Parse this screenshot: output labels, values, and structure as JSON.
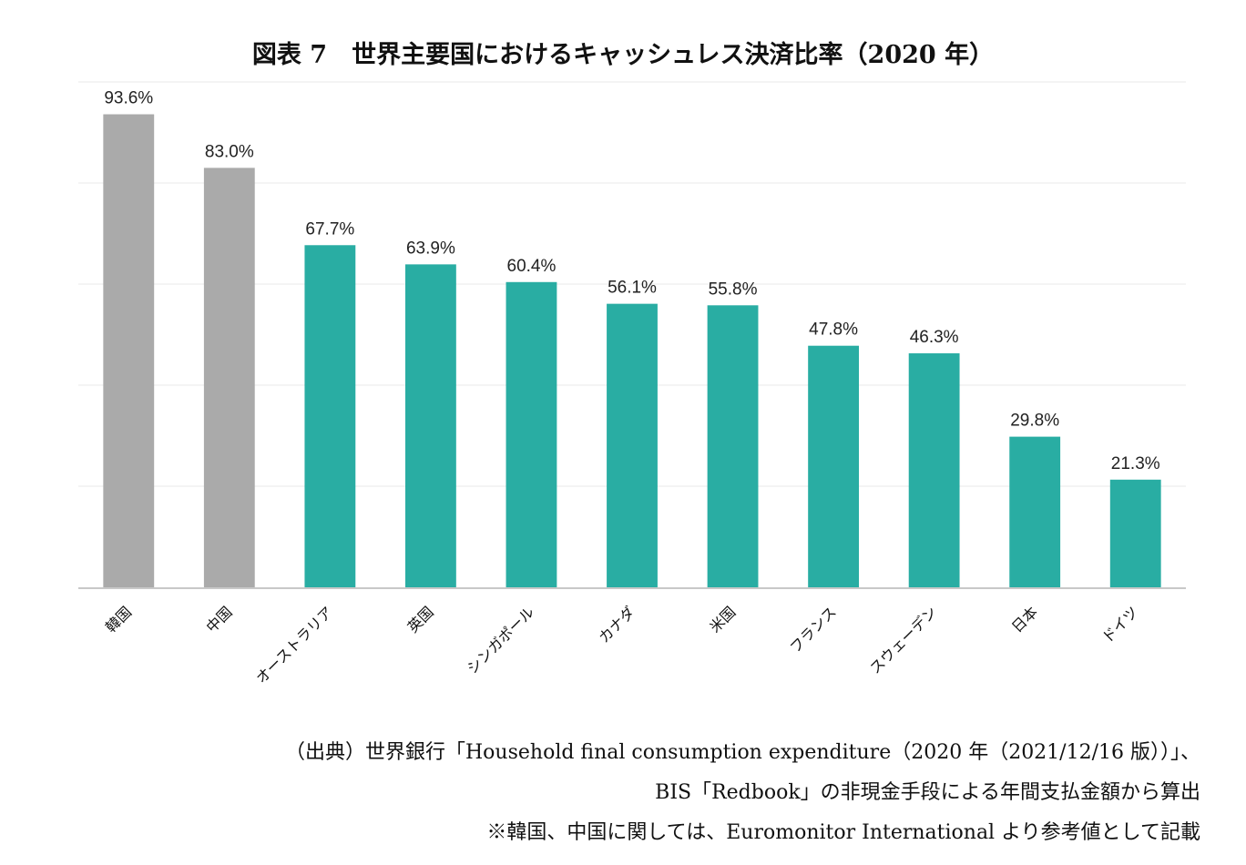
{
  "chart_data": {
    "type": "bar",
    "title": "図表 7　世界主要国におけるキャッシュレス決済比率（2020 年）",
    "xlabel": "",
    "ylabel": "",
    "ylim": [
      0,
      100
    ],
    "grid": true,
    "yticks_visible": false,
    "categories": [
      "韓国",
      "中国",
      "オーストラリア",
      "英国",
      "シンガポール",
      "カナダ",
      "米国",
      "フランス",
      "スウェーデン",
      "日本",
      "ドイツ"
    ],
    "values": [
      93.6,
      83.0,
      67.7,
      63.9,
      60.4,
      56.1,
      55.8,
      47.8,
      46.3,
      29.8,
      21.3
    ],
    "data_labels": [
      "93.6%",
      "83.0%",
      "67.7%",
      "63.9%",
      "60.4%",
      "56.1%",
      "55.8%",
      "47.8%",
      "46.3%",
      "29.8%",
      "21.3%"
    ],
    "bar_colors": [
      "#aaaaaa",
      "#aaaaaa",
      "#29ada3",
      "#29ada3",
      "#29ada3",
      "#29ada3",
      "#29ada3",
      "#29ada3",
      "#29ada3",
      "#29ada3",
      "#29ada3"
    ],
    "colors": {
      "reference": "#aaaaaa",
      "main": "#29ada3",
      "grid": "#f0f0f0",
      "axis": "#c8c8c8"
    },
    "legend": "none"
  },
  "footer": {
    "line1": "（出典）世界銀行「Household final consumption expenditure（2020 年（2021/12/16 版））」、",
    "line2": "BIS「Redbook」の非現金手段による年間支払金額から算出",
    "line3": "※韓国、中国に関しては、Euromonitor International より参考値として記載"
  }
}
